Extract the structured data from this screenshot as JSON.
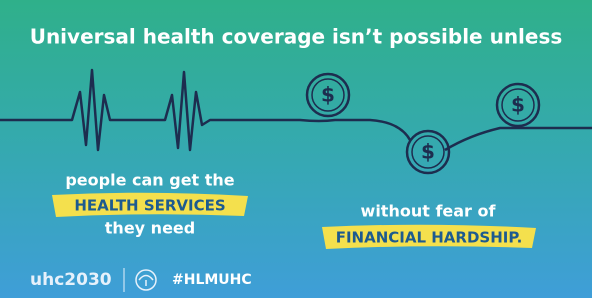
{
  "header": {
    "title": "Universal health coverage isn’t possible unless"
  },
  "left_message": {
    "line1": "people can get the",
    "highlight": "HEALTH SERVICES",
    "line3": "they need"
  },
  "right_message": {
    "line1": "without fear of",
    "highlight": "FINANCIAL HARDSHIP."
  },
  "coin_symbol": "$",
  "footer": {
    "logo": "uhc2030",
    "hashtag": "#HLMUHC"
  }
}
